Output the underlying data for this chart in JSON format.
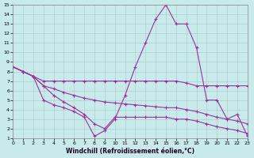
{
  "xlabel": "Windchill (Refroidissement éolien,°C)",
  "xlim": [
    0,
    23
  ],
  "ylim": [
    1,
    15
  ],
  "xticks": [
    0,
    1,
    2,
    3,
    4,
    5,
    6,
    7,
    8,
    9,
    10,
    11,
    12,
    13,
    14,
    15,
    16,
    17,
    18,
    19,
    20,
    21,
    22,
    23
  ],
  "yticks": [
    1,
    2,
    3,
    4,
    5,
    6,
    7,
    8,
    9,
    10,
    11,
    12,
    13,
    14,
    15
  ],
  "background_color": "#c8eaea",
  "grid_color": "#b0d0d0",
  "line_color": "#993399",
  "lines": [
    {
      "x": [
        0,
        1,
        2,
        3,
        4,
        5,
        6,
        7,
        8,
        9,
        10,
        11,
        12,
        13,
        14,
        15,
        16,
        17,
        18,
        19,
        20,
        21,
        22,
        23
      ],
      "y": [
        8.5,
        8.0,
        7.5,
        5.0,
        4.5,
        4.2,
        3.8,
        3.2,
        1.2,
        1.8,
        3.0,
        5.5,
        8.5,
        11.0,
        13.5,
        15.0,
        13.0,
        13.0,
        10.5,
        5.0,
        5.0,
        3.0,
        3.5,
        1.2
      ]
    },
    {
      "x": [
        0,
        1,
        2,
        3,
        4,
        5,
        6,
        7,
        8,
        9,
        10,
        11,
        12,
        13,
        14,
        15,
        16,
        17,
        18,
        19,
        20,
        21,
        22,
        23
      ],
      "y": [
        8.5,
        8.0,
        7.5,
        7.0,
        7.0,
        7.0,
        7.0,
        7.0,
        7.0,
        7.0,
        7.0,
        7.0,
        7.0,
        7.0,
        7.0,
        7.0,
        7.0,
        6.8,
        6.5,
        6.5,
        6.5,
        6.5,
        6.5,
        6.5
      ]
    },
    {
      "x": [
        0,
        1,
        2,
        3,
        4,
        5,
        6,
        7,
        8,
        9,
        10,
        11,
        12,
        13,
        14,
        15,
        16,
        17,
        18,
        19,
        20,
        21,
        22,
        23
      ],
      "y": [
        8.5,
        8.0,
        7.5,
        6.5,
        6.2,
        5.8,
        5.5,
        5.2,
        5.0,
        4.8,
        4.7,
        4.6,
        4.5,
        4.4,
        4.3,
        4.2,
        4.2,
        4.0,
        3.8,
        3.5,
        3.2,
        3.0,
        2.8,
        2.5
      ]
    },
    {
      "x": [
        0,
        1,
        2,
        3,
        4,
        5,
        6,
        7,
        8,
        9,
        10,
        11,
        12,
        13,
        14,
        15,
        16,
        17,
        18,
        19,
        20,
        21,
        22,
        23
      ],
      "y": [
        8.5,
        8.0,
        7.5,
        6.5,
        5.5,
        4.8,
        4.2,
        3.5,
        2.5,
        2.0,
        3.2,
        3.2,
        3.2,
        3.2,
        3.2,
        3.2,
        3.0,
        3.0,
        2.8,
        2.5,
        2.2,
        2.0,
        1.8,
        1.5
      ]
    }
  ]
}
